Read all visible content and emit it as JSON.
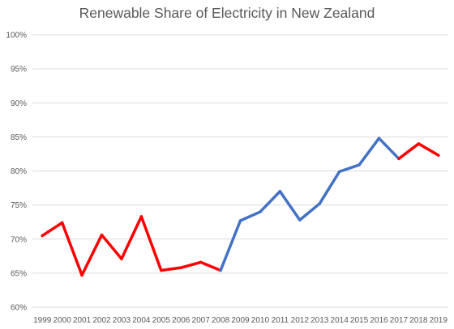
{
  "chart_data": {
    "type": "line",
    "title": "Renewable Share of Electricity in New Zealand",
    "xlabel": "",
    "ylabel": "",
    "ylim": [
      60,
      100
    ],
    "y_ticks": [
      "60%",
      "65%",
      "70%",
      "75%",
      "80%",
      "85%",
      "90%",
      "95%",
      "100%"
    ],
    "grid": true,
    "legend": "none",
    "categories": [
      "1999",
      "2000",
      "2001",
      "2002",
      "2003",
      "2004",
      "2005",
      "2006",
      "2007",
      "2008",
      "2009",
      "2010",
      "2011",
      "2012",
      "2013",
      "2014",
      "2015",
      "2016",
      "2017",
      "2018",
      "2019"
    ],
    "values": [
      70.5,
      72.4,
      64.7,
      70.6,
      67.1,
      73.3,
      65.4,
      65.8,
      66.6,
      65.4,
      72.7,
      74.0,
      77.0,
      72.8,
      75.2,
      79.9,
      80.9,
      84.8,
      81.8,
      84.0,
      82.3
    ],
    "segment_colors": [
      "#FF0000",
      "#FF0000",
      "#FF0000",
      "#FF0000",
      "#FF0000",
      "#FF0000",
      "#FF0000",
      "#FF0000",
      "#FF0000",
      "#4472C4",
      "#4472C4",
      "#4472C4",
      "#4472C4",
      "#4472C4",
      "#4472C4",
      "#4472C4",
      "#4472C4",
      "#4472C4",
      "#FF0000",
      "#FF0000"
    ],
    "colors": {
      "red": "#FF0000",
      "blue": "#4472C4",
      "grid": "#D9D9D9",
      "text": "#595959"
    }
  }
}
